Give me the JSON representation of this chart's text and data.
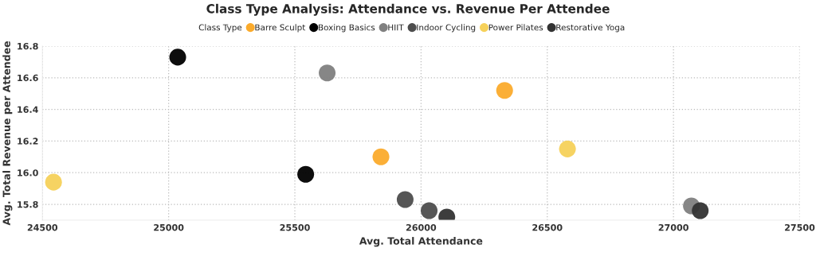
{
  "chart_data": {
    "type": "scatter",
    "title": "Class Type Analysis: Attendance vs. Revenue Per Attendee",
    "xlabel": "Avg. Total Attendance",
    "ylabel": "Avg. Total Revenue per Attendee",
    "legend_title": "Class Type",
    "series": [
      {
        "name": "Barre Sculpt",
        "color": "#fbab2c",
        "x": [
          25841,
          26331
        ],
        "values": [
          16.1,
          16.52
        ]
      },
      {
        "name": "Boxing Basics",
        "color": "#000000",
        "x": [
          25036,
          25543
        ],
        "values": [
          16.73,
          15.99
        ]
      },
      {
        "name": "HIIT",
        "color": "#808080",
        "x": [
          25628,
          27071
        ],
        "values": [
          16.63,
          15.79
        ]
      },
      {
        "name": "Indoor Cycling",
        "color": "#4d4d4d",
        "x": [
          25937,
          26032
        ],
        "values": [
          15.83,
          15.76
        ]
      },
      {
        "name": "Power Pilates",
        "color": "#f6d15a",
        "x": [
          24544,
          26580
        ],
        "values": [
          15.94,
          16.15
        ]
      },
      {
        "name": "Restorative Yoga",
        "color": "#333333",
        "x": [
          26102,
          27106
        ],
        "values": [
          15.72,
          15.76
        ]
      }
    ],
    "xlim": [
      24500,
      27500
    ],
    "xticks": [
      24500,
      25000,
      25500,
      26000,
      26500,
      27000,
      27500
    ],
    "ylim": [
      15.7,
      16.8
    ],
    "yticks": [
      {
        "value": 15.8,
        "label": "15.8"
      },
      {
        "value": 16.0,
        "label": "16.0"
      },
      {
        "value": 16.2,
        "label": "16.2"
      },
      {
        "value": 16.4,
        "label": "16.4"
      },
      {
        "value": 16.6,
        "label": "16.6"
      },
      {
        "value": 16.8,
        "label": "16.8"
      }
    ],
    "grid": true,
    "legend": "top",
    "marker": "circle"
  }
}
